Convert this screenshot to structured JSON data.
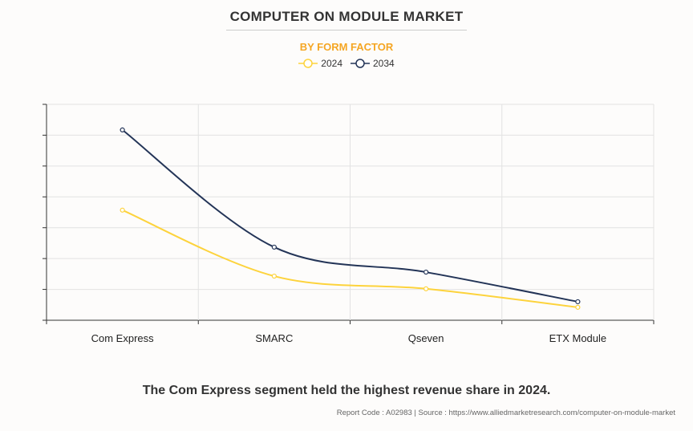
{
  "title": "COMPUTER ON MODULE MARKET",
  "subtitle": "BY FORM FACTOR",
  "caption": "The Com Express segment held the highest revenue share in 2024.",
  "source": "Report Code : A02983  |  Source : https://www.alliedmarketresearch.com/computer-on-module-market",
  "colors": {
    "2024": "#fdd33c",
    "2034": "#233457"
  },
  "chart_data": {
    "type": "line",
    "title": "COMPUTER ON MODULE MARKET",
    "subtitle": "BY FORM FACTOR",
    "categories": [
      "Com Express",
      "SMARC",
      "Qseven",
      "ETX Module"
    ],
    "series": [
      {
        "name": "2024",
        "values": [
          3.57,
          1.43,
          1.02,
          0.42
        ]
      },
      {
        "name": "2034",
        "values": [
          6.17,
          2.37,
          1.56,
          0.6
        ]
      }
    ],
    "ylim": [
      0,
      7
    ],
    "y_tick_labels_shown": false,
    "grid": true,
    "smooth": true,
    "legend": "top-center"
  }
}
